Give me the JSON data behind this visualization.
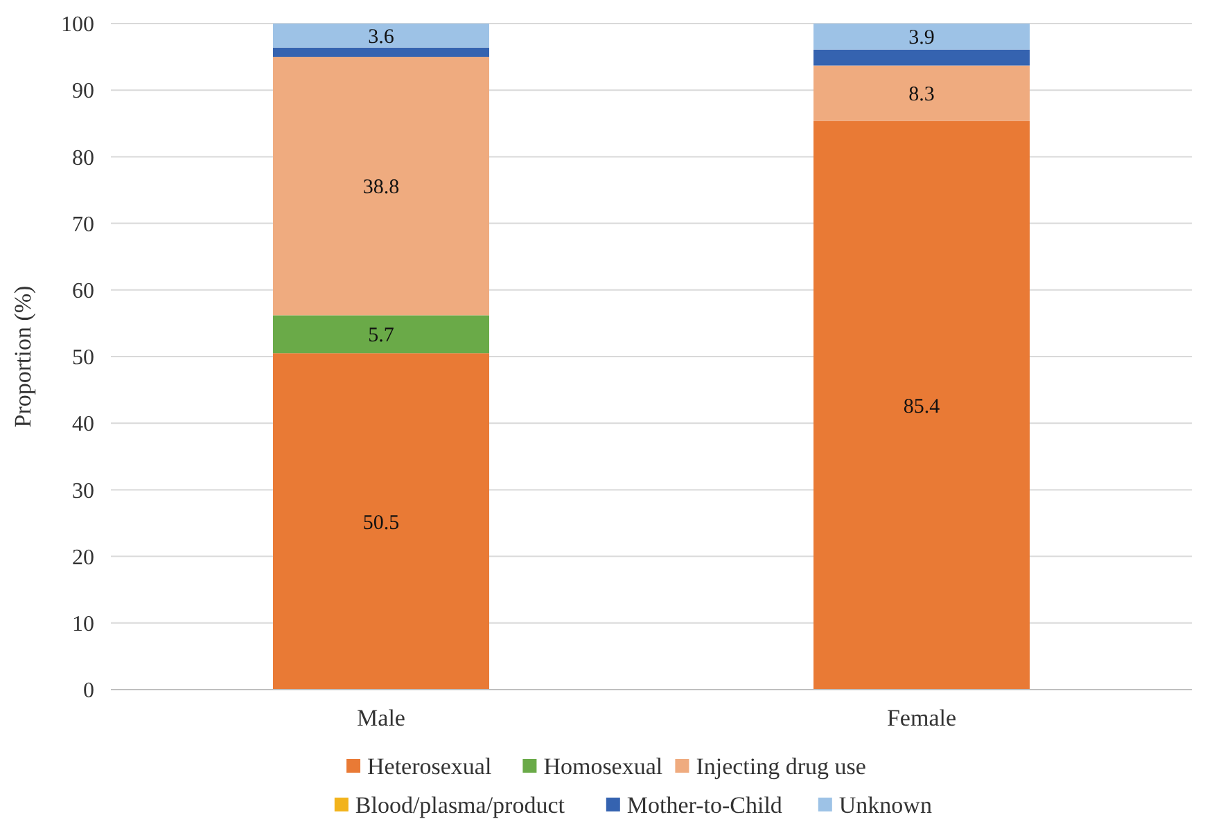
{
  "chart_data": {
    "type": "bar",
    "stacked": true,
    "ylabel": "Proportion (%)",
    "categories": [
      "Male",
      "Female"
    ],
    "series": [
      {
        "name": "Heterosexual",
        "color": "#e97a35",
        "values": [
          50.5,
          85.4
        ],
        "value_labels": [
          "50.5",
          "85.4"
        ]
      },
      {
        "name": "Homosexual",
        "color": "#6aaa48",
        "values": [
          5.7,
          0
        ],
        "value_labels": [
          "5.7",
          null
        ]
      },
      {
        "name": "Injecting drug use",
        "color": "#efab7f",
        "values": [
          38.8,
          8.3
        ],
        "value_labels": [
          "38.8",
          "8.3"
        ]
      },
      {
        "name": "Blood/plasma/product",
        "color": "#f2b31c",
        "values": [
          0,
          0
        ],
        "value_labels": [
          null,
          null
        ]
      },
      {
        "name": "Mother-to-Child",
        "color": "#3563b0",
        "values": [
          1.4,
          2.4
        ],
        "value_labels": [
          null,
          null
        ]
      },
      {
        "name": "Unknown",
        "color": "#9dc2e6",
        "values": [
          3.6,
          3.9
        ],
        "value_labels": [
          "3.6",
          "3.9"
        ]
      }
    ],
    "ylim": [
      0,
      100
    ],
    "yticks": [
      0,
      10,
      20,
      30,
      40,
      50,
      60,
      70,
      80,
      90,
      100
    ],
    "grid": "y",
    "legend": "bottom"
  }
}
